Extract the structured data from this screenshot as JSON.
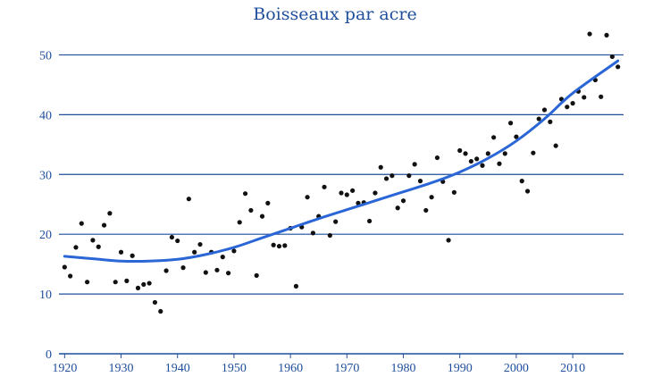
{
  "chart_data": {
    "type": "scatter",
    "title": "Boisseaux par acre",
    "xlabel": "",
    "ylabel": "",
    "xlim": [
      1919,
      2019
    ],
    "ylim": [
      0,
      55
    ],
    "x_ticks": [
      1920,
      1930,
      1940,
      1950,
      1960,
      1970,
      1980,
      1990,
      2000,
      2010
    ],
    "y_ticks": [
      0,
      10,
      20,
      30,
      40,
      50
    ],
    "grid": "horizontal",
    "colors": {
      "text": "#1f4e9c",
      "grid": "#1f4e9c",
      "trend": "#2a66d6",
      "points": "#111111"
    },
    "series": [
      {
        "type": "scatter",
        "points": [
          [
            1920,
            14.5
          ],
          [
            1921,
            13.0
          ],
          [
            1922,
            17.8
          ],
          [
            1923,
            21.8
          ],
          [
            1924,
            12.0
          ],
          [
            1925,
            19.0
          ],
          [
            1926,
            17.9
          ],
          [
            1927,
            21.5
          ],
          [
            1928,
            23.5
          ],
          [
            1929,
            12.0
          ],
          [
            1930,
            17.0
          ],
          [
            1931,
            12.2
          ],
          [
            1932,
            16.4
          ],
          [
            1933,
            11.0
          ],
          [
            1934,
            11.6
          ],
          [
            1935,
            11.8
          ],
          [
            1936,
            8.6
          ],
          [
            1937,
            7.1
          ],
          [
            1938,
            13.9
          ],
          [
            1939,
            19.5
          ],
          [
            1940,
            18.9
          ],
          [
            1941,
            14.4
          ],
          [
            1942,
            25.9
          ],
          [
            1943,
            17.0
          ],
          [
            1944,
            18.3
          ],
          [
            1945,
            13.6
          ],
          [
            1946,
            17.0
          ],
          [
            1947,
            14.0
          ],
          [
            1948,
            16.2
          ],
          [
            1949,
            13.5
          ],
          [
            1950,
            17.2
          ],
          [
            1951,
            22.0
          ],
          [
            1952,
            26.8
          ],
          [
            1953,
            24.0
          ],
          [
            1954,
            13.1
          ],
          [
            1955,
            23.0
          ],
          [
            1956,
            25.2
          ],
          [
            1957,
            18.2
          ],
          [
            1958,
            18.0
          ],
          [
            1959,
            18.1
          ],
          [
            1960,
            21.0
          ],
          [
            1961,
            11.3
          ],
          [
            1962,
            21.2
          ],
          [
            1963,
            26.2
          ],
          [
            1964,
            20.2
          ],
          [
            1965,
            23.0
          ],
          [
            1966,
            27.9
          ],
          [
            1967,
            19.8
          ],
          [
            1968,
            22.1
          ],
          [
            1969,
            26.9
          ],
          [
            1970,
            26.6
          ],
          [
            1971,
            27.3
          ],
          [
            1972,
            25.2
          ],
          [
            1973,
            25.3
          ],
          [
            1974,
            22.2
          ],
          [
            1975,
            26.9
          ],
          [
            1976,
            31.2
          ],
          [
            1977,
            29.3
          ],
          [
            1978,
            29.8
          ],
          [
            1979,
            24.4
          ],
          [
            1980,
            25.6
          ],
          [
            1981,
            29.8
          ],
          [
            1982,
            31.7
          ],
          [
            1983,
            28.9
          ],
          [
            1984,
            24.0
          ],
          [
            1985,
            26.2
          ],
          [
            1986,
            32.8
          ],
          [
            1987,
            28.8
          ],
          [
            1988,
            19.0
          ],
          [
            1989,
            27.0
          ],
          [
            1990,
            34.0
          ],
          [
            1991,
            33.5
          ],
          [
            1992,
            32.2
          ],
          [
            1993,
            32.6
          ],
          [
            1994,
            31.5
          ],
          [
            1995,
            33.5
          ],
          [
            1996,
            36.2
          ],
          [
            1997,
            31.8
          ],
          [
            1998,
            33.5
          ],
          [
            1999,
            38.6
          ],
          [
            2000,
            36.3
          ],
          [
            2001,
            28.9
          ],
          [
            2002,
            27.2
          ],
          [
            2003,
            33.6
          ],
          [
            2004,
            39.3
          ],
          [
            2005,
            40.8
          ],
          [
            2006,
            38.8
          ],
          [
            2007,
            34.8
          ],
          [
            2008,
            42.6
          ],
          [
            2009,
            41.3
          ],
          [
            2010,
            41.9
          ],
          [
            2011,
            43.9
          ],
          [
            2012,
            42.9
          ],
          [
            2013,
            53.5
          ],
          [
            2014,
            45.8
          ],
          [
            2015,
            43.0
          ],
          [
            2016,
            53.3
          ],
          [
            2017,
            49.7
          ],
          [
            2018,
            48.0
          ]
        ]
      },
      {
        "type": "trend-line",
        "points": [
          [
            1920,
            16.3
          ],
          [
            1925,
            15.9
          ],
          [
            1930,
            15.5
          ],
          [
            1935,
            15.5
          ],
          [
            1940,
            15.8
          ],
          [
            1945,
            16.6
          ],
          [
            1950,
            17.8
          ],
          [
            1955,
            19.4
          ],
          [
            1960,
            21.0
          ],
          [
            1965,
            22.6
          ],
          [
            1970,
            24.1
          ],
          [
            1975,
            25.6
          ],
          [
            1980,
            27.1
          ],
          [
            1985,
            28.6
          ],
          [
            1990,
            30.4
          ],
          [
            1995,
            32.7
          ],
          [
            2000,
            35.6
          ],
          [
            2005,
            39.3
          ],
          [
            2010,
            43.6
          ],
          [
            2018,
            49.0
          ]
        ]
      }
    ]
  }
}
